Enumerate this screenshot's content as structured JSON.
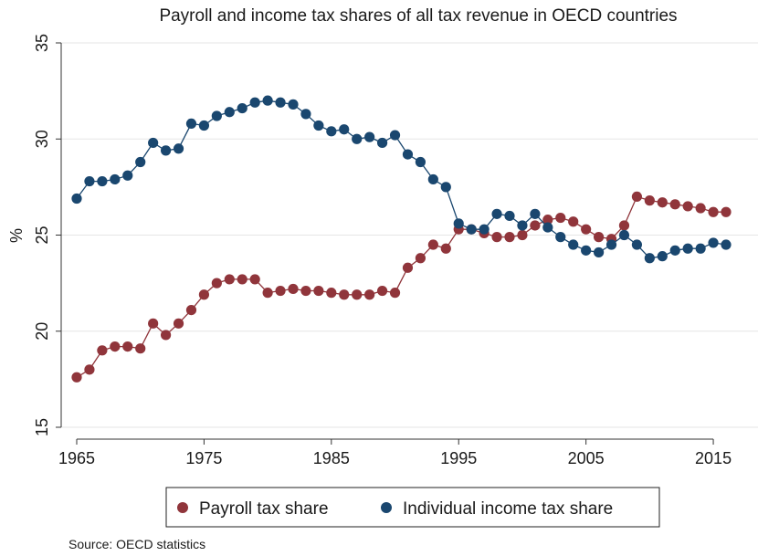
{
  "chart_data": {
    "type": "line",
    "title": "Payroll and income tax shares of all tax revenue in OECD countries",
    "xlabel": "",
    "ylabel": "%",
    "xlim": [
      1965,
      2016
    ],
    "ylim": [
      15,
      35
    ],
    "xticks": [
      1965,
      1975,
      1985,
      1995,
      2005,
      2015
    ],
    "yticks": [
      15,
      20,
      25,
      30,
      35
    ],
    "grid": true,
    "legend_position": "bottom",
    "source": "Source: OECD statistics",
    "x": [
      1965,
      1966,
      1967,
      1968,
      1969,
      1970,
      1971,
      1972,
      1973,
      1974,
      1975,
      1976,
      1977,
      1978,
      1979,
      1980,
      1981,
      1982,
      1983,
      1984,
      1985,
      1986,
      1987,
      1988,
      1989,
      1990,
      1991,
      1992,
      1993,
      1994,
      1995,
      1996,
      1997,
      1998,
      1999,
      2000,
      2001,
      2002,
      2003,
      2004,
      2005,
      2006,
      2007,
      2008,
      2009,
      2010,
      2011,
      2012,
      2013,
      2014,
      2015,
      2016
    ],
    "series": [
      {
        "name": "Payroll tax share",
        "color": "#90353b",
        "values": [
          17.6,
          18.0,
          19.0,
          19.2,
          19.2,
          19.1,
          20.4,
          19.8,
          20.4,
          21.1,
          21.9,
          22.5,
          22.7,
          22.7,
          22.7,
          22.0,
          22.1,
          22.2,
          22.1,
          22.1,
          22.0,
          21.9,
          21.9,
          21.9,
          22.1,
          22.0,
          23.3,
          23.8,
          24.5,
          24.3,
          25.3,
          25.3,
          25.1,
          24.9,
          24.9,
          25.0,
          25.5,
          25.8,
          25.9,
          25.7,
          25.3,
          24.9,
          24.8,
          25.5,
          27.0,
          26.8,
          26.7,
          26.6,
          26.5,
          26.4,
          26.2,
          26.2
        ]
      },
      {
        "name": "Individual income tax share",
        "color": "#1a476f",
        "values": [
          26.9,
          27.8,
          27.8,
          27.9,
          28.1,
          28.8,
          29.8,
          29.4,
          29.5,
          30.8,
          30.7,
          31.2,
          31.4,
          31.6,
          31.9,
          32.0,
          31.9,
          31.8,
          31.3,
          30.7,
          30.4,
          30.5,
          30.0,
          30.1,
          29.8,
          30.2,
          29.2,
          28.8,
          27.9,
          27.5,
          25.6,
          25.3,
          25.3,
          26.1,
          26.0,
          25.5,
          26.1,
          25.4,
          24.9,
          24.5,
          24.2,
          24.1,
          24.5,
          25.0,
          24.5,
          23.8,
          23.9,
          24.2,
          24.3,
          24.3,
          24.6,
          24.5
        ]
      }
    ]
  }
}
